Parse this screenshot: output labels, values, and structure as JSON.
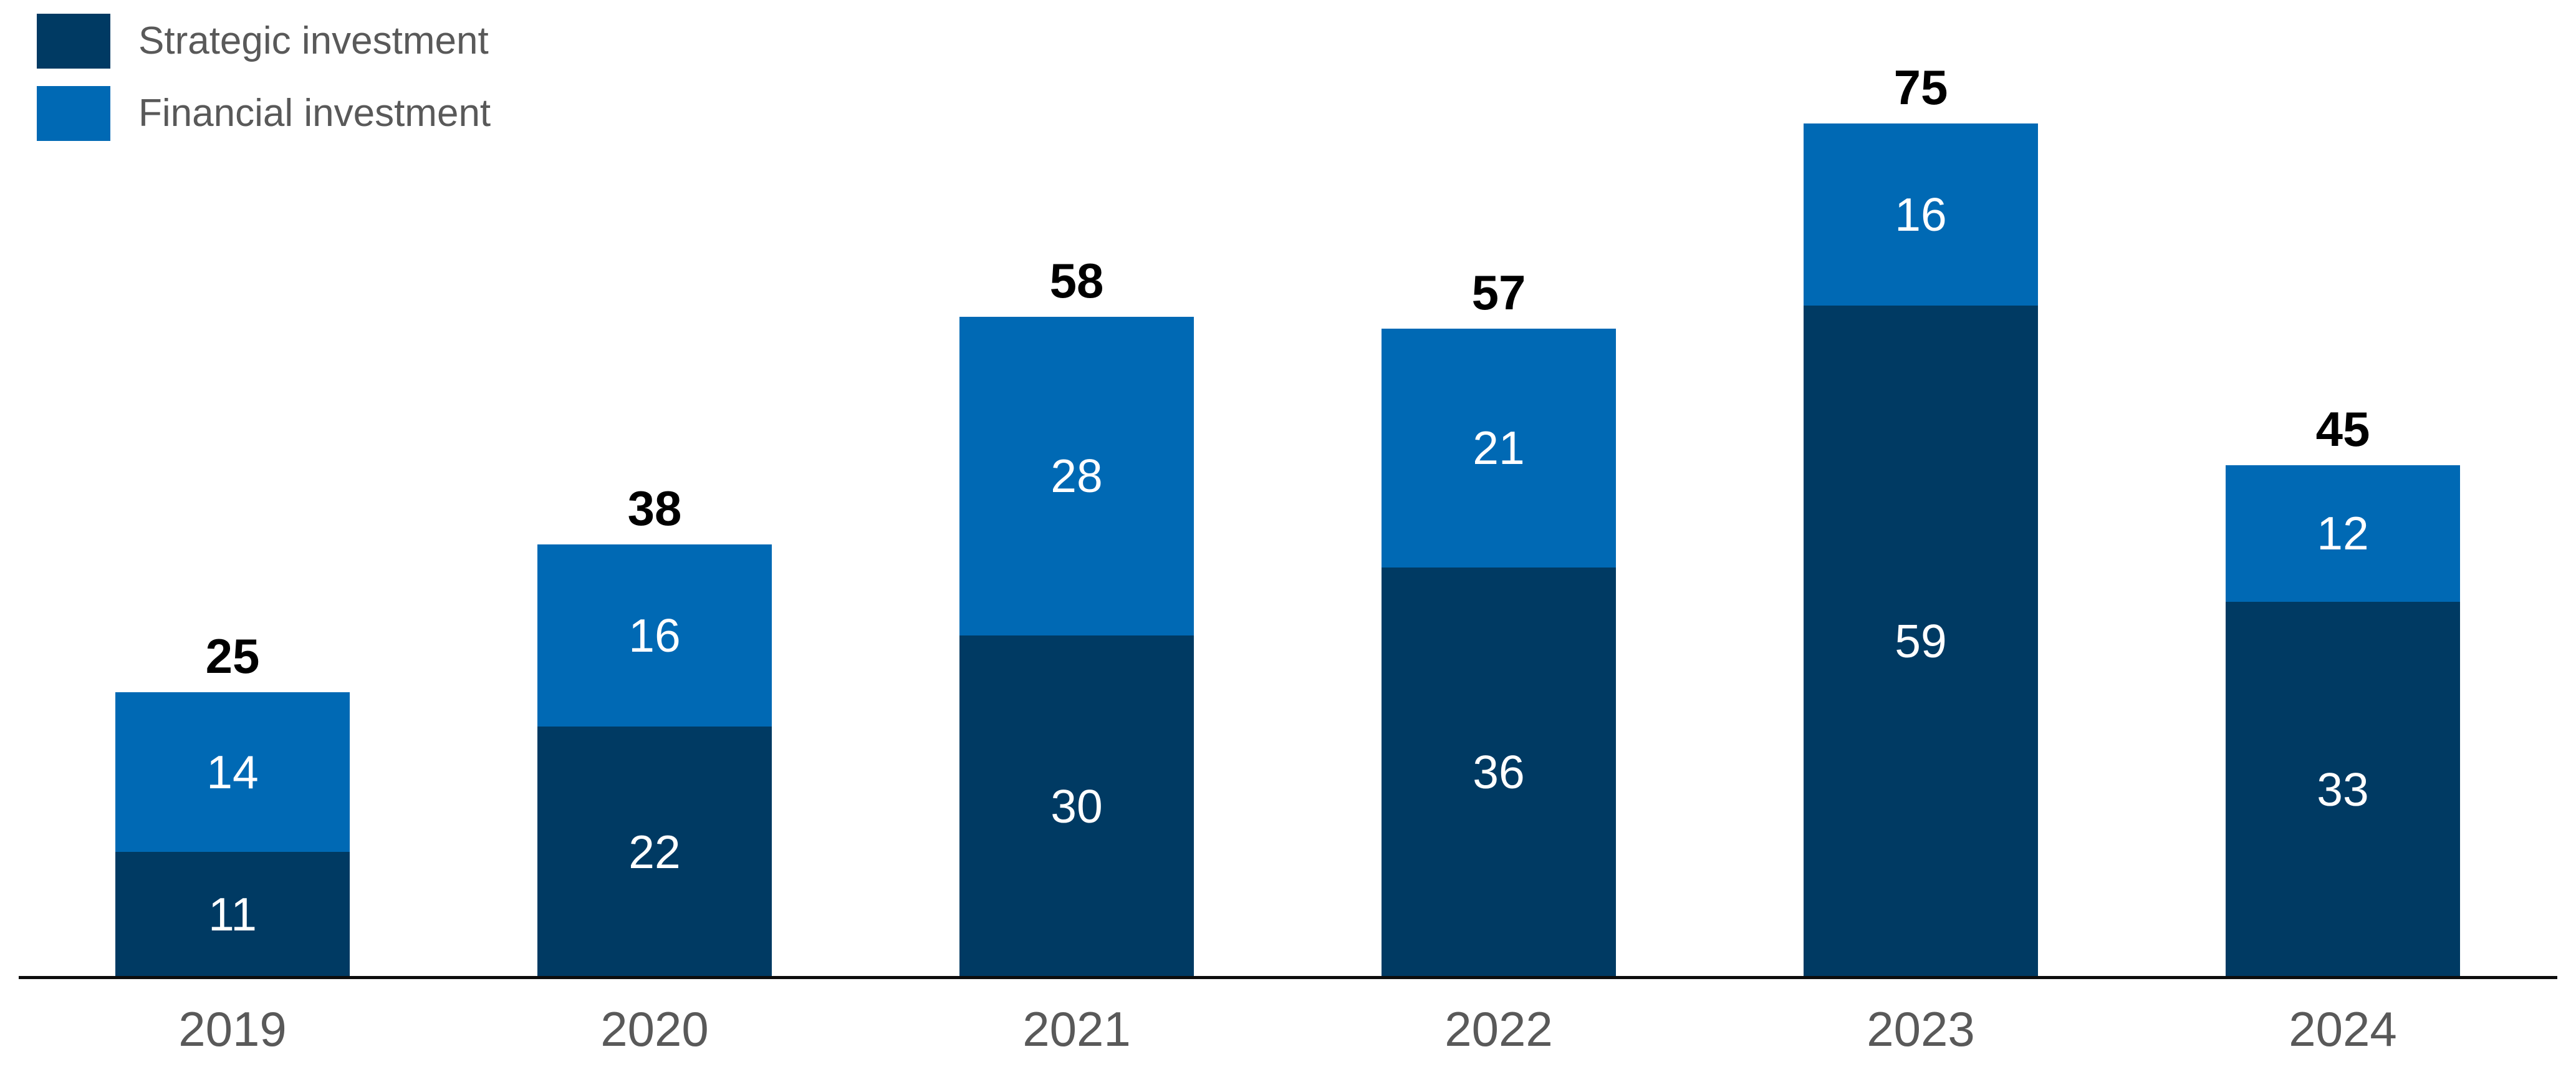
{
  "legend": {
    "items": [
      {
        "label": "Strategic investment",
        "color": "#003A63"
      },
      {
        "label": "Financial investment",
        "color": "#0069B4"
      }
    ]
  },
  "chart_data": {
    "type": "bar",
    "stacked": true,
    "title": "",
    "xlabel": "",
    "ylabel": "",
    "categories": [
      "2019",
      "2020",
      "2021",
      "2022",
      "2023",
      "2024"
    ],
    "series": [
      {
        "name": "Strategic investment",
        "color": "#003A63",
        "values": [
          11,
          22,
          30,
          36,
          59,
          33
        ]
      },
      {
        "name": "Financial investment",
        "color": "#0069B4",
        "values": [
          14,
          16,
          28,
          21,
          16,
          12
        ]
      }
    ],
    "totals": [
      25,
      38,
      58,
      57,
      75,
      45
    ],
    "ylim": [
      0,
      80
    ],
    "grid": false,
    "y_axis_visible": false,
    "legend_position": "top-left",
    "value_labels": "inside-center-white",
    "total_labels": "bold-above-bar",
    "axis_color": "#0d0d0d",
    "category_label_color": "#595959"
  }
}
